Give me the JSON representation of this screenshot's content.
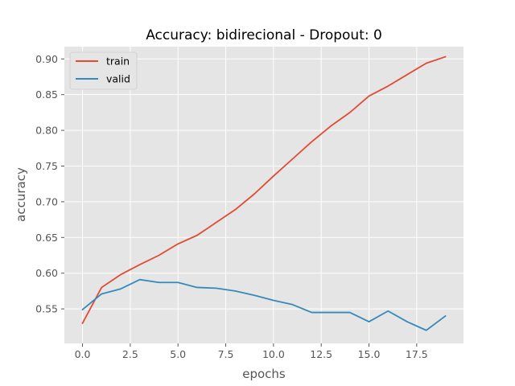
{
  "chart_data": {
    "type": "line",
    "title": "Accuracy: bidirecional - Dropout: 0",
    "xlabel": "epochs",
    "ylabel": "accuracy",
    "xlim": [
      -0.95,
      19.95
    ],
    "ylim": [
      0.5017,
      0.9172
    ],
    "grid": true,
    "legend_position": "top-left",
    "xticks": [
      0.0,
      2.5,
      5.0,
      7.5,
      10.0,
      12.5,
      15.0,
      17.5
    ],
    "xtick_labels": [
      "0.0",
      "2.5",
      "5.0",
      "7.5",
      "10.0",
      "12.5",
      "15.0",
      "17.5"
    ],
    "yticks": [
      0.55,
      0.6,
      0.65,
      0.7,
      0.75,
      0.8,
      0.85,
      0.9
    ],
    "ytick_labels": [
      "0.55",
      "0.60",
      "0.65",
      "0.70",
      "0.75",
      "0.80",
      "0.85",
      "0.90"
    ],
    "x": [
      0,
      1,
      2,
      3,
      4,
      5,
      6,
      7,
      8,
      9,
      10,
      11,
      12,
      13,
      14,
      15,
      16,
      17,
      18,
      19
    ],
    "series": [
      {
        "name": "train",
        "color": "#E24A33",
        "values": [
          0.53,
          0.58,
          0.598,
          0.612,
          0.625,
          0.641,
          0.653,
          0.671,
          0.689,
          0.711,
          0.736,
          0.76,
          0.784,
          0.806,
          0.825,
          0.848,
          0.862,
          0.878,
          0.894,
          0.903
        ]
      },
      {
        "name": "valid",
        "color": "#348ABD",
        "values": [
          0.549,
          0.571,
          0.578,
          0.591,
          0.587,
          0.587,
          0.58,
          0.579,
          0.575,
          0.569,
          0.562,
          0.556,
          0.545,
          0.545,
          0.545,
          0.532,
          0.547,
          0.532,
          0.52,
          0.54
        ]
      }
    ]
  }
}
